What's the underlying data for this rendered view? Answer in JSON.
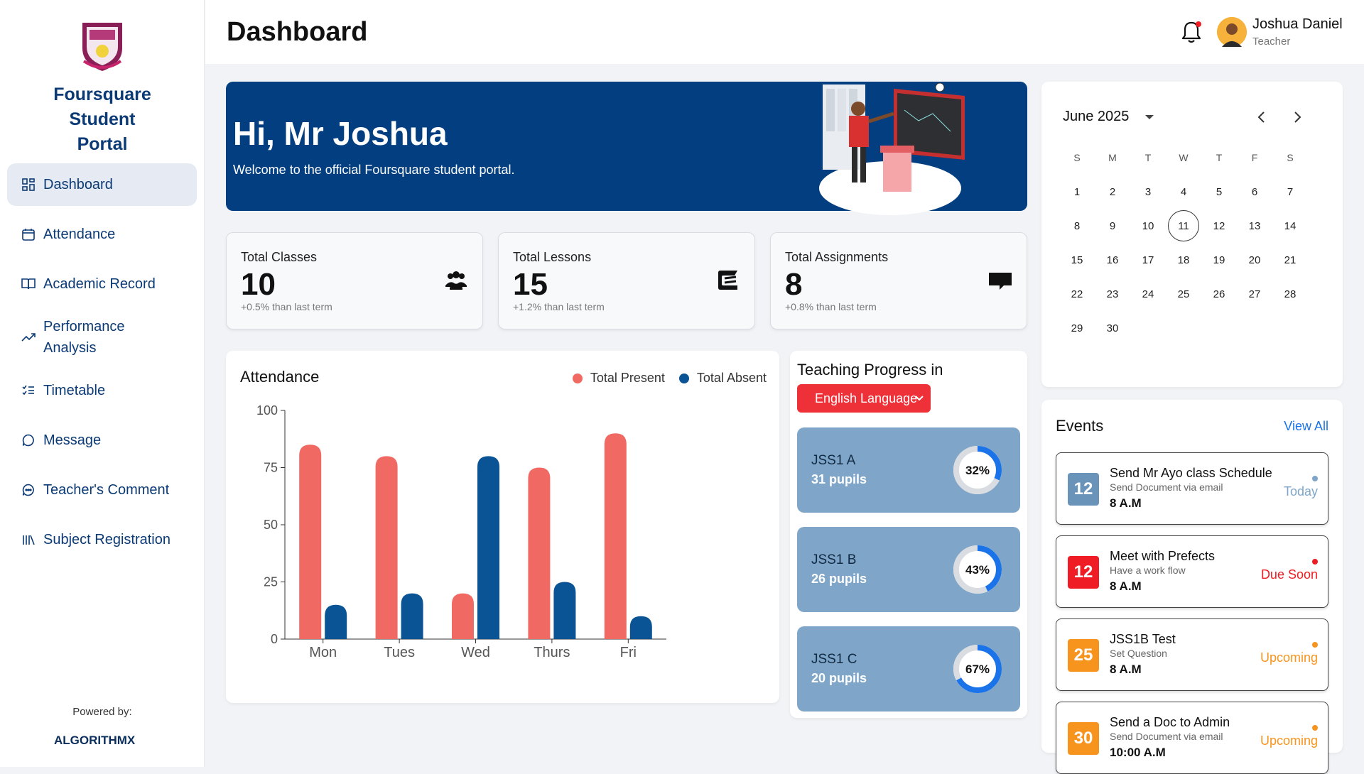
{
  "sidebar": {
    "brand": "Foursquare Student Portal",
    "items": [
      {
        "label": "Dashboard"
      },
      {
        "label": "Attendance"
      },
      {
        "label": "Academic Record"
      },
      {
        "label": "Performance Analysis"
      },
      {
        "label": "Timetable"
      },
      {
        "label": "Message"
      },
      {
        "label": "Teacher's Comment"
      },
      {
        "label": "Subject Registration"
      }
    ],
    "powered_by": "Powered by:",
    "powered_logo": "ALGORITHMX"
  },
  "header": {
    "title": "Dashboard",
    "user": {
      "name": "Joshua Daniel",
      "role": "Teacher"
    }
  },
  "banner": {
    "title": "Hi, Mr Joshua",
    "subtitle": "Welcome to the official Foursquare student portal."
  },
  "stats": [
    {
      "label": "Total Classes",
      "value": "10",
      "delta": "+0.5% than last term",
      "icon": "users-icon"
    },
    {
      "label": "Total Lessons",
      "value": "15",
      "delta": "+1.2% than last term",
      "icon": "book-icon"
    },
    {
      "label": "Total Assignments",
      "value": "8",
      "delta": "+0.8% than last term",
      "icon": "chat-icon"
    }
  ],
  "attendance": {
    "title": "Attendance",
    "legend_present": "Total Present",
    "legend_absent": "Total Absent"
  },
  "chart_data": {
    "type": "bar",
    "categories": [
      "Mon",
      "Tues",
      "Wed",
      "Thurs",
      "Fri"
    ],
    "series": [
      {
        "name": "Total Present",
        "values": [
          85,
          80,
          20,
          75,
          90
        ],
        "color": "#f06a63"
      },
      {
        "name": "Total Absent",
        "values": [
          15,
          20,
          80,
          25,
          10
        ],
        "color": "#0a5394"
      }
    ],
    "yticks": [
      0,
      25,
      50,
      75,
      100
    ],
    "ylim": [
      0,
      100
    ],
    "legend": "top-right"
  },
  "teaching": {
    "title": "Teaching Progress in",
    "subject": "English Language",
    "classes": [
      {
        "name": "JSS1 A",
        "pupils": "31 pupils",
        "progress": 32,
        "label": "32%"
      },
      {
        "name": "JSS1 B",
        "pupils": "26 pupils",
        "progress": 43,
        "label": "43%"
      },
      {
        "name": "JSS1 C",
        "pupils": "20 pupils",
        "progress": 67,
        "label": "67%"
      }
    ]
  },
  "calendar": {
    "month": "June 2025",
    "weekdays": [
      "S",
      "M",
      "T",
      "W",
      "T",
      "F",
      "S"
    ],
    "days": 30,
    "start_weekday": 0,
    "today": 11
  },
  "events": {
    "title": "Events",
    "view_all": "View All",
    "items": [
      {
        "date": "12",
        "name": "Send Mr Ayo class Schedule",
        "desc": "Send Document via email",
        "time": "8 A.M",
        "status": "Today",
        "date_color": "#6a93ba",
        "status_color": "#7fa6c8"
      },
      {
        "date": "12",
        "name": "Meet with Prefects",
        "desc": "Have a work flow",
        "time": "8 A.M",
        "status": "Due Soon",
        "date_color": "#ef1c25",
        "status_color": "#ef1c25"
      },
      {
        "date": "25",
        "name": "JSS1B Test",
        "desc": "Set Question",
        "time": "8 A.M",
        "status": "Upcoming",
        "date_color": "#f7941d",
        "status_color": "#f7941d"
      },
      {
        "date": "30",
        "name": "Send a Doc to Admin",
        "desc": "Send Document via email",
        "time": "10:00 A.M",
        "status": "Upcoming",
        "date_color": "#f7941d",
        "status_color": "#f7941d"
      }
    ]
  }
}
